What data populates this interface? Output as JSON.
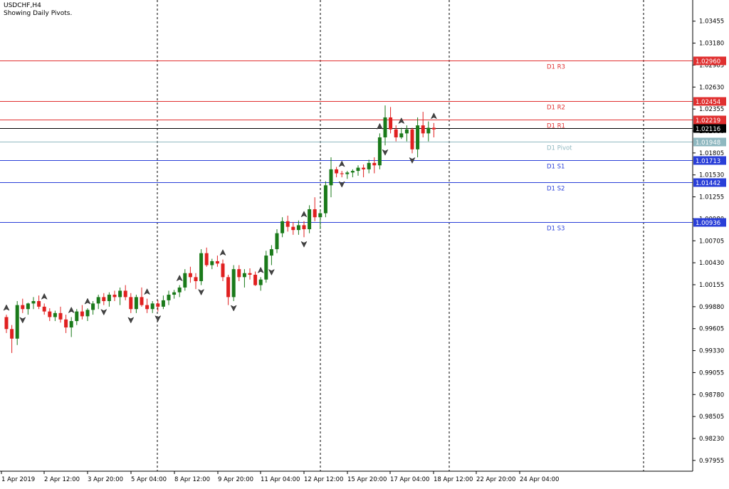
{
  "header": {
    "symbol": "USDCHF,H4",
    "note": "Showing Daily Pivots."
  },
  "colors": {
    "background": "#ffffff",
    "bull_candle": "#1a7a1a",
    "bear_candle": "#e02020",
    "resistance": "#e03030",
    "support": "#2a3fd8",
    "pivot": "#8fb8c0",
    "current_price": "#000000",
    "grid_separator": "#000000"
  },
  "chart_data": {
    "type": "candlestick",
    "symbol": "USDCHF",
    "timeframe": "H4",
    "ylim": [
      0.9782,
      1.0372
    ],
    "y_ticks": [
      "1.03455",
      "1.03180",
      "1.02905",
      "1.02630",
      "1.02355",
      "1.02080",
      "1.01805",
      "1.01530",
      "1.01255",
      "1.00980",
      "1.00705",
      "1.00430",
      "1.00155",
      "0.99880",
      "0.99605",
      "0.99330",
      "0.99055",
      "0.98780",
      "0.98505",
      "0.98230",
      "0.97955"
    ],
    "x_ticks": [
      {
        "label": "1 Apr 2019",
        "index": 0
      },
      {
        "label": "2 Apr 12:00",
        "index": 9
      },
      {
        "label": "3 Apr 20:00",
        "index": 19
      },
      {
        "label": "5 Apr 04:00",
        "index": 29
      },
      {
        "label": "8 Apr 12:00",
        "index": 39
      },
      {
        "label": "9 Apr 20:00",
        "index": 49
      },
      {
        "label": "11 Apr 04:00",
        "index": 59
      },
      {
        "label": "12 Apr 12:00",
        "index": 69
      },
      {
        "label": "15 Apr 20:00",
        "index": 79
      },
      {
        "label": "17 Apr 04:00",
        "index": 89
      },
      {
        "label": "18 Apr 12:00",
        "index": 99
      },
      {
        "label": "22 Apr 20:00",
        "index": 109
      },
      {
        "label": "24 Apr 04:00",
        "index": 119
      }
    ],
    "day_separators": [
      36,
      73,
      103,
      148
    ],
    "pivots": [
      {
        "name": "D1 R3",
        "value": 1.0296,
        "kind": "resistance"
      },
      {
        "name": "D1 R2",
        "value": 1.02454,
        "kind": "resistance"
      },
      {
        "name": "D1 R1",
        "value": 1.02219,
        "kind": "resistance"
      },
      {
        "name": "D1 Pivot",
        "value": 1.01948,
        "kind": "pivot"
      },
      {
        "name": "D1 S1",
        "value": 1.01713,
        "kind": "support"
      },
      {
        "name": "D1 S2",
        "value": 1.01442,
        "kind": "support"
      },
      {
        "name": "D1 S3",
        "value": 1.00936,
        "kind": "support"
      }
    ],
    "current_price": 1.02116,
    "candles": [
      [
        0.9975,
        0.9978,
        0.9955,
        0.996
      ],
      [
        0.996,
        0.9965,
        0.993,
        0.9948
      ],
      [
        0.9948,
        0.9995,
        0.994,
        0.999
      ],
      [
        0.999,
        0.9998,
        0.998,
        0.9985
      ],
      [
        0.9985,
        0.9993,
        0.9978,
        0.9992
      ],
      [
        0.9992,
        1.0,
        0.9985,
        0.9995
      ],
      [
        0.9995,
        1.0002,
        0.9985,
        0.9988
      ],
      [
        0.9988,
        0.9992,
        0.9978,
        0.9982
      ],
      [
        0.9982,
        0.9986,
        0.997,
        0.9975
      ],
      [
        0.9975,
        0.9983,
        0.997,
        0.998
      ],
      [
        0.998,
        0.9988,
        0.9968,
        0.9972
      ],
      [
        0.9972,
        0.9978,
        0.9955,
        0.9962
      ],
      [
        0.9962,
        0.9975,
        0.995,
        0.997
      ],
      [
        0.997,
        0.9985,
        0.9965,
        0.9982
      ],
      [
        0.9982,
        0.999,
        0.9972,
        0.9976
      ],
      [
        0.9976,
        0.9986,
        0.997,
        0.9984
      ],
      [
        0.9984,
        0.9995,
        0.9978,
        0.9992
      ],
      [
        0.9992,
        1.0003,
        0.9985,
        1.0
      ],
      [
        1.0,
        1.0005,
        0.999,
        0.9995
      ],
      [
        0.9995,
        1.0006,
        0.9988,
        1.0003
      ],
      [
        1.0003,
        1.0008,
        0.9995,
        1.0
      ],
      [
        1.0,
        1.0012,
        0.999,
        1.0008
      ],
      [
        1.0008,
        1.0015,
        0.9996,
        1.0
      ],
      [
        1.0,
        1.0005,
        0.998,
        0.9985
      ],
      [
        0.9985,
        1.0003,
        0.998,
        1.0
      ],
      [
        1.0,
        1.0012,
        0.9988,
        0.999
      ],
      [
        0.999,
        0.9998,
        0.998,
        0.9985
      ],
      [
        0.9985,
        0.9995,
        0.998,
        0.9992
      ],
      [
        0.9992,
        0.9996,
        0.9982,
        0.9988
      ],
      [
        0.9988,
        1.0002,
        0.9985,
        0.9996
      ],
      [
        0.9996,
        1.0008,
        0.999,
        1.0003
      ],
      [
        1.0003,
        1.0009,
        0.9998,
        1.0006
      ],
      [
        1.0006,
        1.0015,
        1.0,
        1.0012
      ],
      [
        1.0012,
        1.0035,
        1.0008,
        1.003
      ],
      [
        1.003,
        1.0038,
        1.0018,
        1.0025
      ],
      [
        1.0025,
        1.003,
        1.001,
        1.002
      ],
      [
        1.002,
        1.006,
        1.0015,
        1.0055
      ],
      [
        1.0055,
        1.0062,
        1.0038,
        1.004
      ],
      [
        1.004,
        1.0048,
        1.0035,
        1.0045
      ],
      [
        1.0045,
        1.0052,
        1.0038,
        1.0042
      ],
      [
        1.0042,
        1.0047,
        1.002,
        1.0025
      ],
      [
        1.0025,
        1.0028,
        0.999,
        1.0
      ],
      [
        1.0,
        1.004,
        0.9995,
        1.0035
      ],
      [
        1.0035,
        1.004,
        1.002,
        1.0025
      ],
      [
        1.0025,
        1.0035,
        1.0012,
        1.003
      ],
      [
        1.003,
        1.0036,
        1.0022,
        1.0028
      ],
      [
        1.0028,
        1.0032,
        1.0014,
        1.0015
      ],
      [
        1.0015,
        1.0025,
        1.0008,
        1.0022
      ],
      [
        1.0022,
        1.0058,
        1.0018,
        1.0052
      ],
      [
        1.0052,
        1.0065,
        1.004,
        1.006
      ],
      [
        1.006,
        1.0085,
        1.0055,
        1.008
      ],
      [
        1.008,
        1.01,
        1.0075,
        1.0095
      ],
      [
        1.0095,
        1.0102,
        1.0082,
        1.0088
      ],
      [
        1.0088,
        1.0094,
        1.0078,
        1.0084
      ],
      [
        1.0084,
        1.0096,
        1.0078,
        1.009
      ],
      [
        1.009,
        1.0095,
        1.0075,
        1.0085
      ],
      [
        1.0085,
        1.0115,
        1.008,
        1.011
      ],
      [
        1.011,
        1.0125,
        1.0095,
        1.01
      ],
      [
        1.01,
        1.011,
        1.0085,
        1.0105
      ],
      [
        1.0105,
        1.0145,
        1.01,
        1.014
      ],
      [
        1.014,
        1.0175,
        1.0125,
        1.016
      ],
      [
        1.016,
        1.0163,
        1.015,
        1.0155
      ],
      [
        1.0155,
        1.0158,
        1.015,
        1.0154
      ],
      [
        1.0154,
        1.0158,
        1.0148,
        1.0156
      ],
      [
        1.0156,
        1.016,
        1.015,
        1.0158
      ],
      [
        1.0158,
        1.0165,
        1.0152,
        1.0162
      ],
      [
        1.0162,
        1.0166,
        1.015,
        1.016
      ],
      [
        1.016,
        1.0172,
        1.0155,
        1.0168
      ],
      [
        1.0168,
        1.0175,
        1.0155,
        1.0165
      ],
      [
        1.0165,
        1.0205,
        1.016,
        1.02
      ],
      [
        1.02,
        1.024,
        1.019,
        1.0225
      ],
      [
        1.0225,
        1.0238,
        1.0205,
        1.021
      ],
      [
        1.021,
        1.0215,
        1.0195,
        1.02
      ],
      [
        1.02,
        1.0212,
        1.0198,
        1.0205
      ],
      [
        1.0205,
        1.0215,
        1.0195,
        1.021
      ],
      [
        1.021,
        1.0212,
        1.018,
        1.0185
      ],
      [
        1.0185,
        1.0225,
        1.0175,
        1.0215
      ],
      [
        1.0215,
        1.0232,
        1.02,
        1.0205
      ],
      [
        1.0205,
        1.022,
        1.0195,
        1.0212
      ],
      [
        1.0212,
        1.0218,
        1.02,
        1.021
      ]
    ],
    "candle_x_start": 0,
    "fractals_up_idx": [
      0,
      7,
      12,
      15,
      26,
      32,
      40,
      47,
      55,
      62,
      69,
      73,
      79,
      87,
      92,
      99,
      110,
      121
    ],
    "fractals_down_idx": [
      3,
      18,
      23,
      28,
      36,
      42,
      49,
      55,
      62,
      70,
      75,
      83,
      88,
      93,
      100,
      115
    ]
  }
}
